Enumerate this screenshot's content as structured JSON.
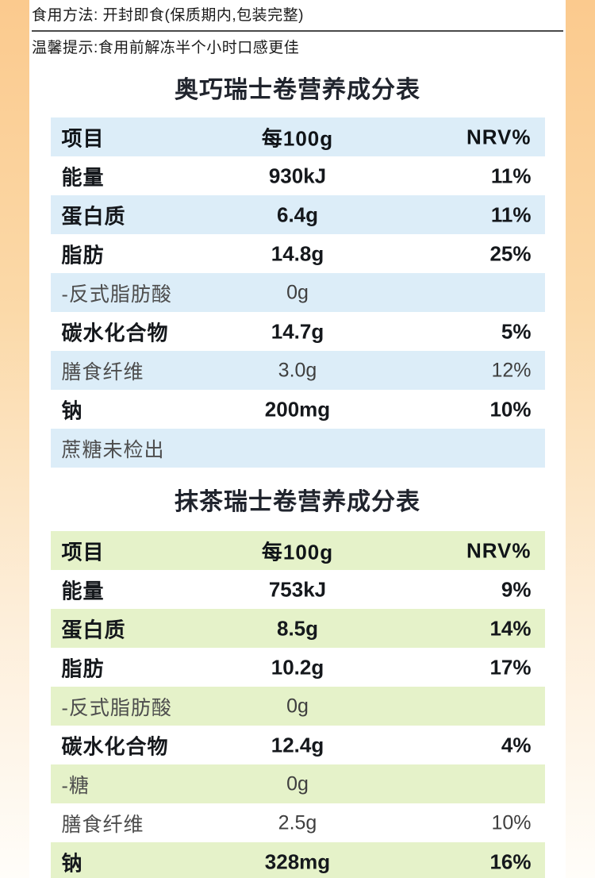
{
  "page": {
    "background_gradient_top": "#fbca8e",
    "background_gradient_bottom": "#fffdf9"
  },
  "instructions": {
    "usage": "食用方法: 开封即食(保质期内,包装完整)",
    "tip": "温馨提示:食用前解冻半个小时口感更佳"
  },
  "tables": [
    {
      "title": "奥巧瑞士卷营养成分表",
      "accent_color": "#dcedf8",
      "headers": [
        "项目",
        "每100g",
        "NRV%"
      ],
      "rows": [
        {
          "item": "能量",
          "per100g": "930kJ",
          "nrv": "11%",
          "style": "primary"
        },
        {
          "item": "蛋白质",
          "per100g": "6.4g",
          "nrv": "11%",
          "style": "primary"
        },
        {
          "item": "脂肪",
          "per100g": "14.8g",
          "nrv": "25%",
          "style": "primary"
        },
        {
          "item": "-反式脂肪酸",
          "per100g": "0g",
          "nrv": "",
          "style": "sub"
        },
        {
          "item": "碳水化合物",
          "per100g": "14.7g",
          "nrv": "5%",
          "style": "primary"
        },
        {
          "item": "膳食纤维",
          "per100g": "3.0g",
          "nrv": "12%",
          "style": "sub"
        },
        {
          "item": "钠",
          "per100g": "200mg",
          "nrv": "10%",
          "style": "primary"
        },
        {
          "item": "蔗糖未检出",
          "per100g": "",
          "nrv": "",
          "style": "sub"
        }
      ]
    },
    {
      "title": "抹茶瑞士卷营养成分表",
      "accent_color": "#e5f2c9",
      "headers": [
        "项目",
        "每100g",
        "NRV%"
      ],
      "rows": [
        {
          "item": "能量",
          "per100g": "753kJ",
          "nrv": "9%",
          "style": "primary"
        },
        {
          "item": "蛋白质",
          "per100g": "8.5g",
          "nrv": "14%",
          "style": "primary"
        },
        {
          "item": "脂肪",
          "per100g": "10.2g",
          "nrv": "17%",
          "style": "primary"
        },
        {
          "item": "-反式脂肪酸",
          "per100g": "0g",
          "nrv": "",
          "style": "sub"
        },
        {
          "item": "碳水化合物",
          "per100g": "12.4g",
          "nrv": "4%",
          "style": "primary"
        },
        {
          "item": "-糖",
          "per100g": "0g",
          "nrv": "",
          "style": "sub"
        },
        {
          "item": "膳食纤维",
          "per100g": "2.5g",
          "nrv": "10%",
          "style": "sub"
        },
        {
          "item": "钠",
          "per100g": "328mg",
          "nrv": "16%",
          "style": "primary"
        }
      ]
    }
  ]
}
